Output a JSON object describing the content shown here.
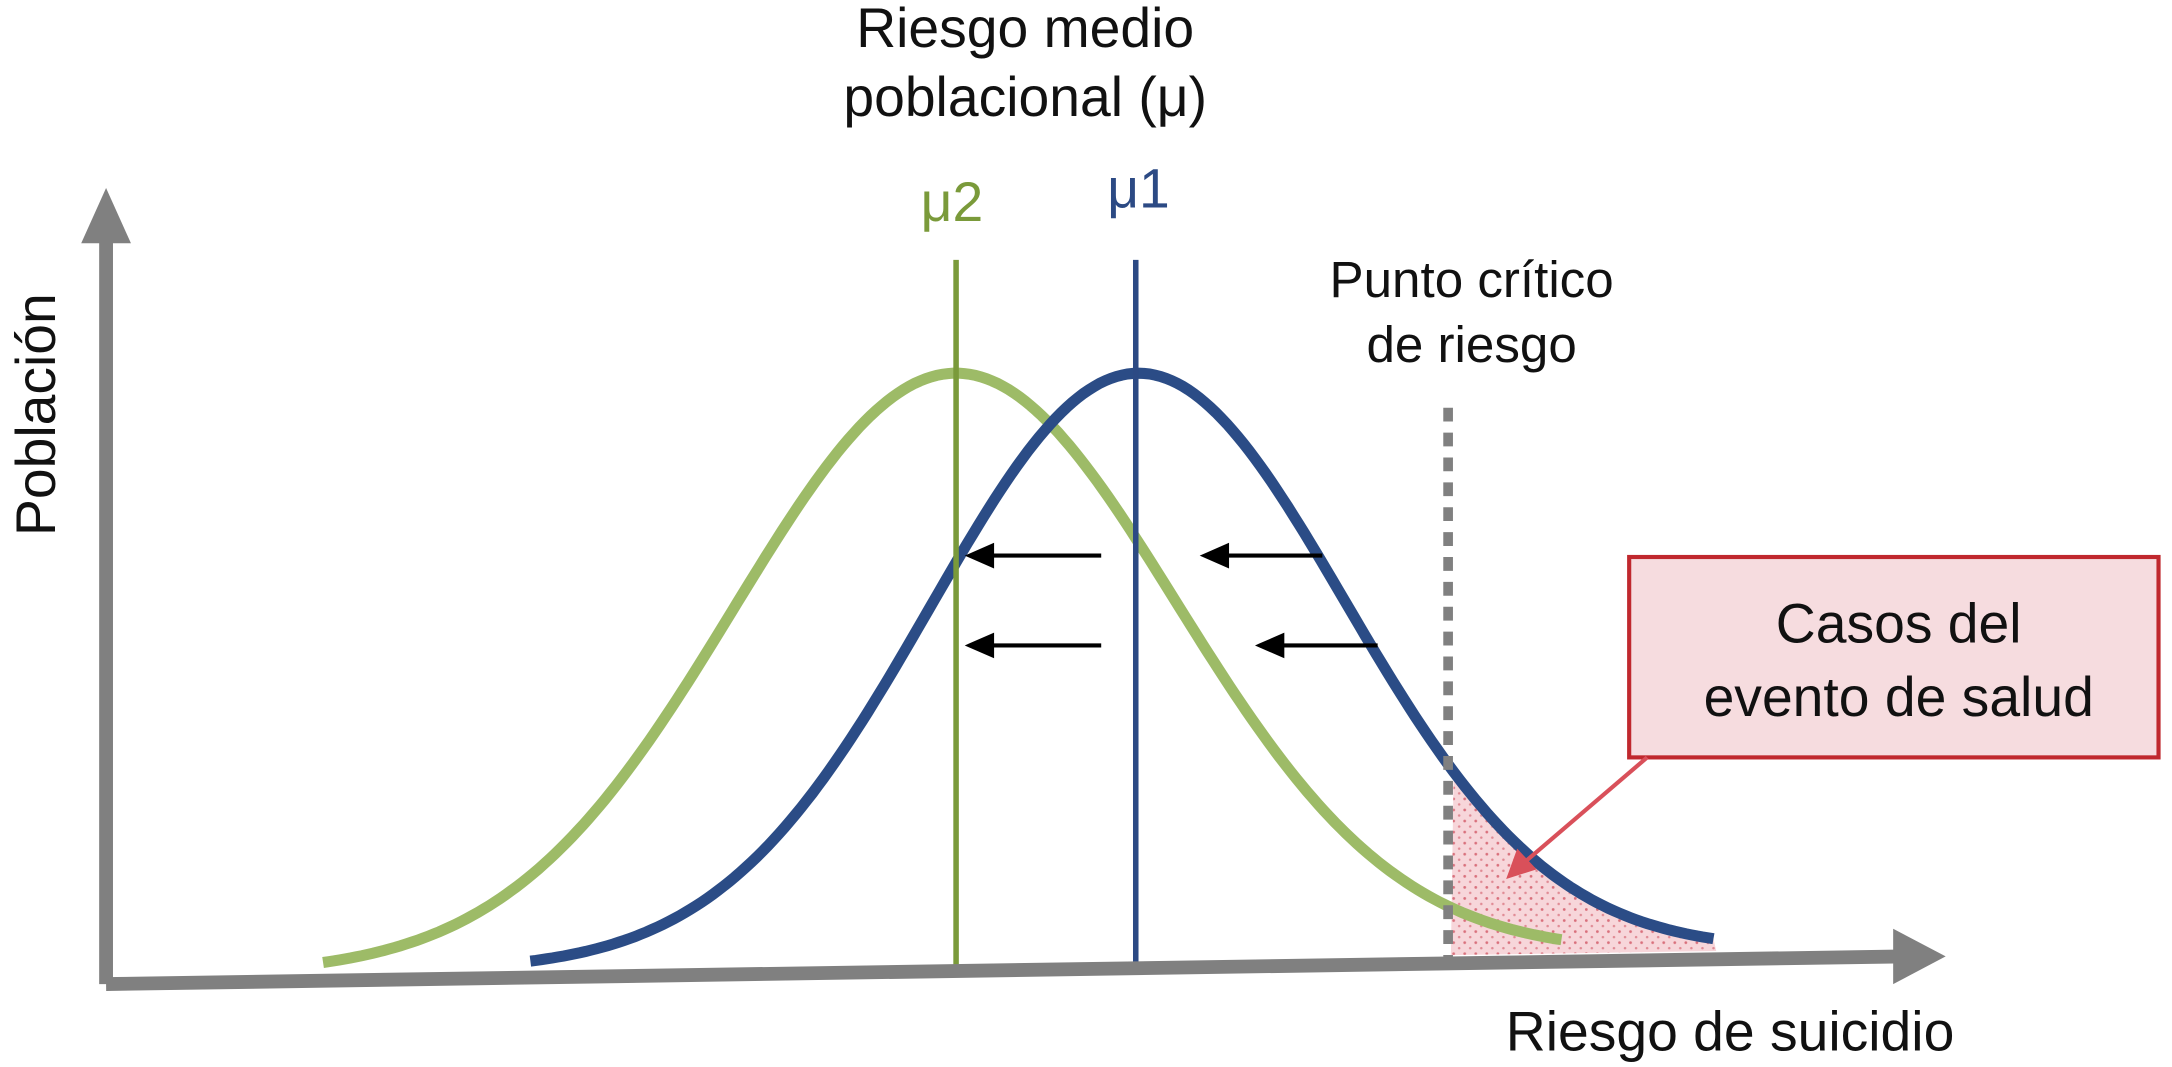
{
  "y_axis_label": "Población",
  "x_axis_label": "Riesgo de suicidio",
  "mean_label": [
    "Riesgo medio",
    "poblacional (μ)"
  ],
  "mu2_label": "μ2",
  "mu1_label": "μ1",
  "critical_point_label": [
    "Punto crítico",
    "de riesgo"
  ],
  "cases_box": [
    "Casos del",
    "evento de salud"
  ]
}
